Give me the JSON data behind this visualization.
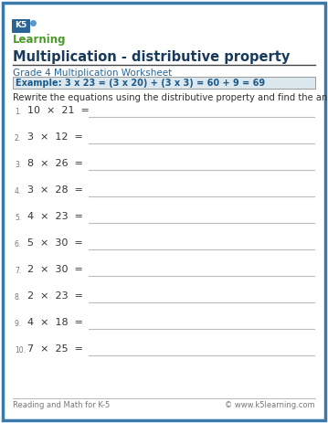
{
  "border_color": "#1a6b8a",
  "background_color": "#ffffff",
  "title": "Multiplication - distributive property",
  "subtitle": "Grade 4 Multiplication Worksheet",
  "example_text": "Example: 3 x 23 = (3 x 20) + (3 x 3) = 60 + 9 = 69",
  "example_bg": "#dde8ee",
  "example_border": "#aaaaaa",
  "instruction": "Rewrite the equations using the distributive property and find the answer.",
  "problems": [
    "10  ×  21  =",
    "3  ×  12  =",
    "8  ×  26  =",
    "3  ×  28  =",
    "4  ×  23  =",
    "5  ×  30  =",
    "2  ×  30  =",
    "2  ×  23  =",
    "4  ×  18  =",
    "7  ×  25  ="
  ],
  "footer_left": "Reading and Math for K-5",
  "footer_right": "© www.k5learning.com",
  "title_color": "#1a3a5c",
  "subtitle_color": "#2a6496",
  "example_color": "#1a5a8a",
  "instruction_color": "#333333",
  "problem_color": "#333333",
  "number_color": "#777777",
  "line_color": "#bbbbbb",
  "footer_color": "#777777",
  "logo_k5_color": "#2a6496",
  "logo_learning_color": "#4a9a2a",
  "outer_border_color": "#3a7aaa"
}
